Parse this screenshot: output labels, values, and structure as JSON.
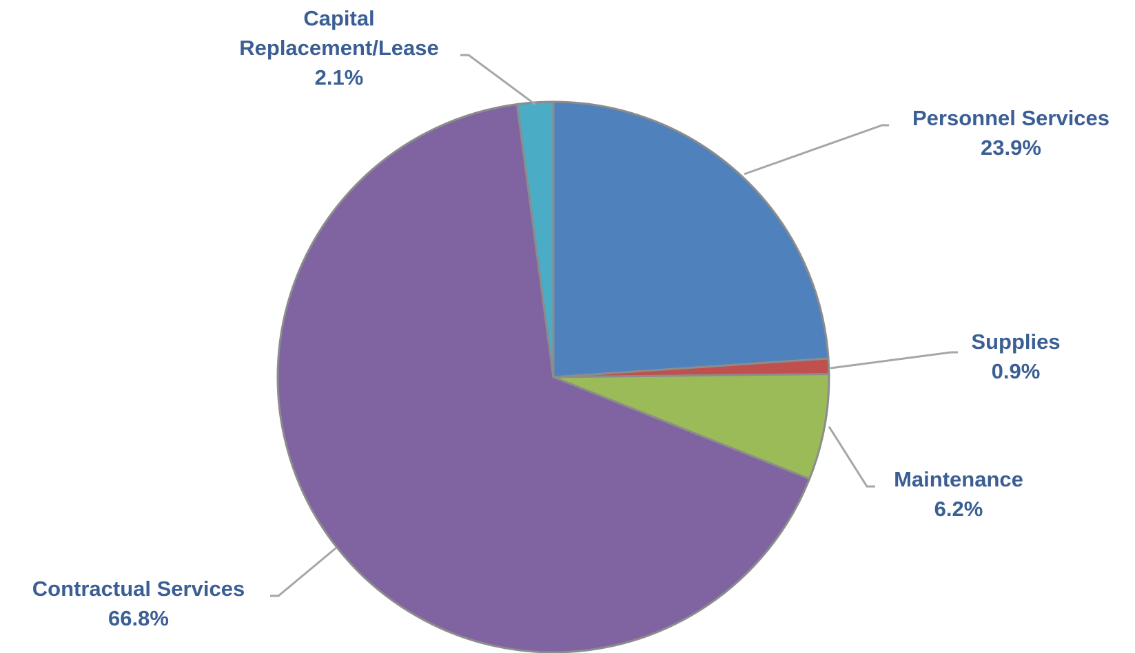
{
  "chart_data": {
    "type": "pie",
    "title": "",
    "start_angle_deg": 0,
    "direction": "clockwise",
    "slice_border_color": "#8c8c8c",
    "label_color": "#3b5f94",
    "leader_line_color": "#a6a6a6",
    "slices": [
      {
        "name": "Personnel Services",
        "value": 23.9,
        "display": "23.9%",
        "color": "#4f81bd"
      },
      {
        "name": "Supplies",
        "value": 0.9,
        "display": "0.9%",
        "color": "#c0504d"
      },
      {
        "name": "Maintenance",
        "value": 6.2,
        "display": "6.2%",
        "color": "#9bbb59"
      },
      {
        "name": "Contractual Services",
        "value": 66.8,
        "display": "66.8%",
        "color": "#8064a2"
      },
      {
        "name": "Capital Replacement/Lease",
        "display_lines": [
          "Capital",
          "Replacement/Lease"
        ],
        "value": 2.1,
        "display": "2.1%",
        "color": "#4bacc6"
      }
    ]
  }
}
